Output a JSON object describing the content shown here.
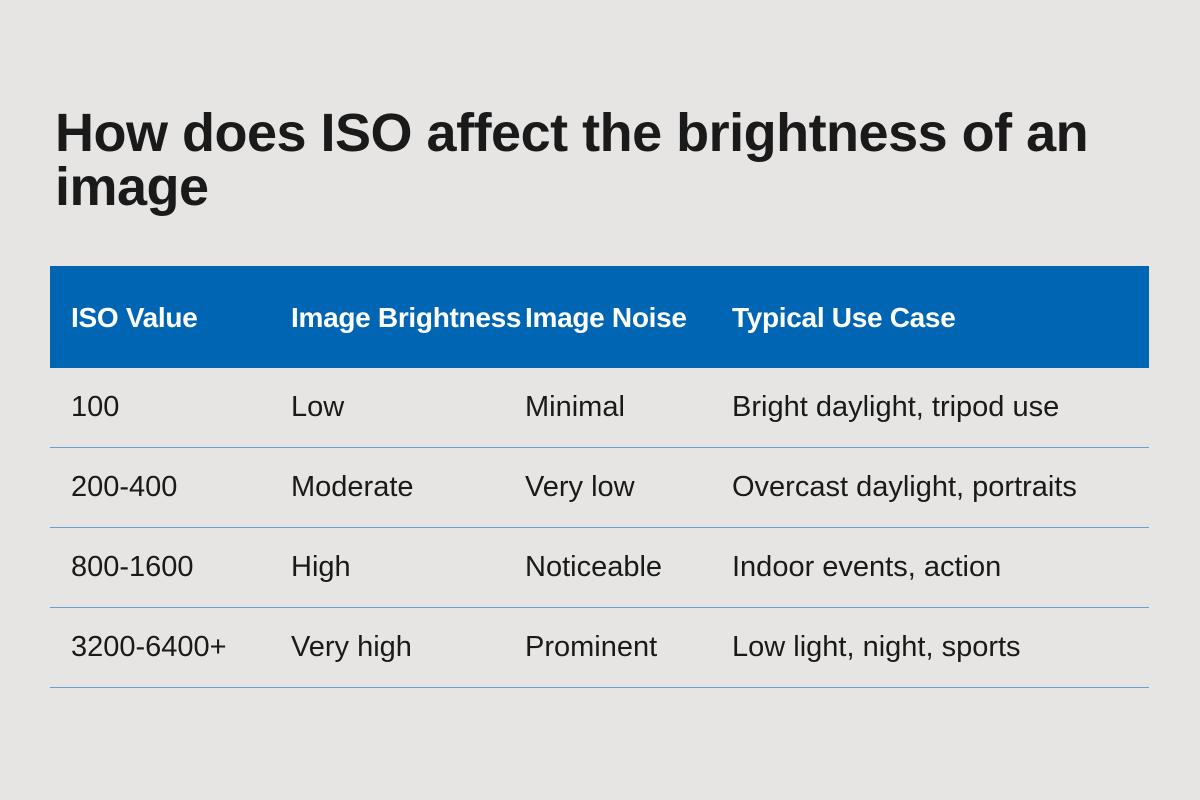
{
  "title": "How does ISO affect the brightness of an image",
  "table": {
    "header_color": "#0066b3",
    "columns": [
      "ISO Value",
      "Image Brightness",
      "Image Noise",
      "Typical Use Case"
    ],
    "rows": [
      [
        "100",
        "Low",
        "Minimal",
        "Bright daylight, tripod use"
      ],
      [
        "200-400",
        "Moderate",
        "Very low",
        "Overcast daylight, portraits"
      ],
      [
        "800-1600",
        "High",
        "Noticeable",
        "Indoor events, action"
      ],
      [
        "3200-6400+",
        "Very high",
        "Prominent",
        "Low light, night, sports"
      ]
    ]
  }
}
